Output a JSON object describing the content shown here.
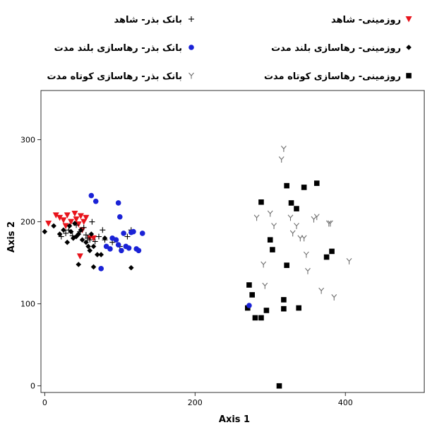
{
  "chart_data": {
    "type": "scatter",
    "xlabel": "Axis 1",
    "ylabel": "Axis 2",
    "xlim": [
      -5,
      505
    ],
    "ylim": [
      -8,
      360
    ],
    "x_ticks": [
      0,
      200,
      400
    ],
    "y_ticks": [
      0,
      100,
      200,
      300
    ],
    "legend_position": "top",
    "series": [
      {
        "name": "روزمینی- شاهد",
        "marker": "triangle-down",
        "color": "#e8141c",
        "points": [
          [
            5,
            198
          ],
          [
            15,
            208
          ],
          [
            20,
            205
          ],
          [
            25,
            202
          ],
          [
            28,
            195
          ],
          [
            30,
            208
          ],
          [
            35,
            200
          ],
          [
            40,
            210
          ],
          [
            42,
            203
          ],
          [
            45,
            197
          ],
          [
            48,
            207
          ],
          [
            50,
            190
          ],
          [
            52,
            200
          ],
          [
            55,
            205
          ],
          [
            60,
            180
          ],
          [
            65,
            180
          ],
          [
            47,
            158
          ]
        ]
      },
      {
        "name": "روزمینی- رهاسازی بلند مدت",
        "marker": "diamond",
        "color": "#000000",
        "points": [
          [
            0,
            188
          ],
          [
            12,
            195
          ],
          [
            20,
            185
          ],
          [
            25,
            190
          ],
          [
            30,
            175
          ],
          [
            33,
            195
          ],
          [
            35,
            188
          ],
          [
            38,
            180
          ],
          [
            40,
            198
          ],
          [
            42,
            182
          ],
          [
            45,
            185
          ],
          [
            48,
            190
          ],
          [
            50,
            178
          ],
          [
            55,
            175
          ],
          [
            58,
            170
          ],
          [
            60,
            165
          ],
          [
            62,
            185
          ],
          [
            65,
            170
          ],
          [
            70,
            160
          ],
          [
            75,
            160
          ],
          [
            80,
            180
          ],
          [
            45,
            148
          ],
          [
            65,
            145
          ],
          [
            115,
            144
          ]
        ]
      },
      {
        "name": "روزمینی- رهاسازی کوتاه مدت",
        "marker": "square",
        "color": "#000000",
        "points": [
          [
            270,
            95
          ],
          [
            272,
            123
          ],
          [
            276,
            111
          ],
          [
            280,
            83
          ],
          [
            288,
            83
          ],
          [
            288,
            224
          ],
          [
            295,
            92
          ],
          [
            300,
            178
          ],
          [
            303,
            166
          ],
          [
            312,
            0
          ],
          [
            318,
            94
          ],
          [
            318,
            105
          ],
          [
            322,
            147
          ],
          [
            322,
            244
          ],
          [
            328,
            223
          ],
          [
            335,
            216
          ],
          [
            338,
            95
          ],
          [
            345,
            242
          ],
          [
            362,
            247
          ],
          [
            375,
            157
          ],
          [
            382,
            164
          ]
        ]
      },
      {
        "name": "بانک بذر- شاهد",
        "marker": "plus",
        "color": "#000000",
        "points": [
          [
            22,
            182
          ],
          [
            28,
            186
          ],
          [
            32,
            190
          ],
          [
            37,
            183
          ],
          [
            42,
            196
          ],
          [
            47,
            188
          ],
          [
            52,
            193
          ],
          [
            55,
            184
          ],
          [
            57,
            180
          ],
          [
            60,
            178
          ],
          [
            63,
            200
          ],
          [
            67,
            176
          ],
          [
            72,
            182
          ],
          [
            77,
            190
          ],
          [
            80,
            178
          ],
          [
            90,
            175
          ],
          [
            100,
            170
          ],
          [
            110,
            182
          ],
          [
            115,
            190
          ]
        ]
      },
      {
        "name": "بانک بذر- رهاسازی بلند مدت",
        "marker": "circle",
        "color": "#1a22d6",
        "points": [
          [
            62,
            232
          ],
          [
            68,
            225
          ],
          [
            75,
            143
          ],
          [
            82,
            170
          ],
          [
            87,
            167
          ],
          [
            90,
            180
          ],
          [
            95,
            178
          ],
          [
            98,
            223
          ],
          [
            98,
            172
          ],
          [
            100,
            206
          ],
          [
            102,
            165
          ],
          [
            105,
            186
          ],
          [
            108,
            170
          ],
          [
            112,
            168
          ],
          [
            115,
            187
          ],
          [
            118,
            188
          ],
          [
            122,
            167
          ],
          [
            125,
            165
          ],
          [
            130,
            186
          ],
          [
            272,
            98
          ]
        ]
      },
      {
        "name": "بانک بذر- رهاسازی کوتاه مدت",
        "marker": "y",
        "color": "#6e6e6e",
        "points": [
          [
            282,
            205
          ],
          [
            291,
            148
          ],
          [
            293,
            122
          ],
          [
            300,
            210
          ],
          [
            305,
            195
          ],
          [
            315,
            276
          ],
          [
            318,
            289
          ],
          [
            327,
            205
          ],
          [
            330,
            186
          ],
          [
            335,
            195
          ],
          [
            340,
            180
          ],
          [
            345,
            180
          ],
          [
            348,
            160
          ],
          [
            350,
            140
          ],
          [
            358,
            203
          ],
          [
            362,
            206
          ],
          [
            368,
            116
          ],
          [
            378,
            198
          ],
          [
            380,
            198
          ],
          [
            385,
            108
          ],
          [
            405,
            152
          ]
        ]
      }
    ]
  }
}
